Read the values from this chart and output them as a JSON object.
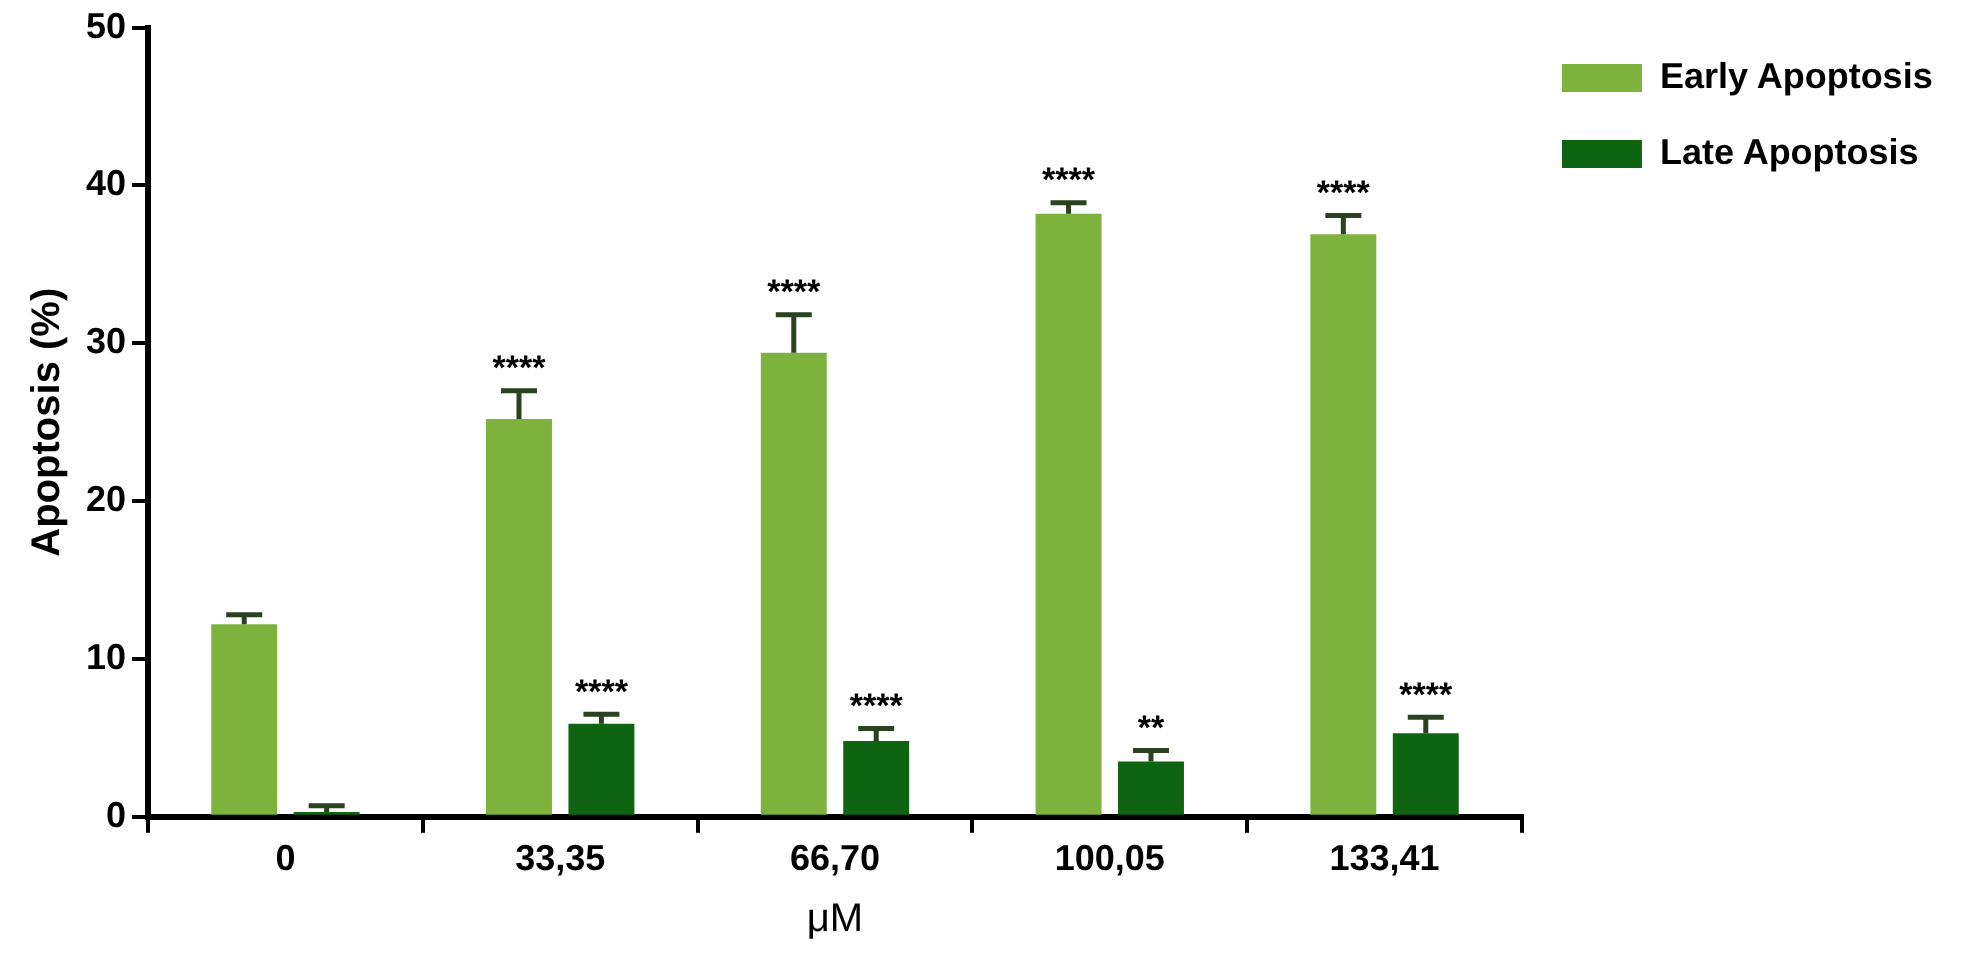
{
  "chart_data": {
    "type": "bar",
    "xlabel": "μM",
    "ylabel": "Apoptosis (%)",
    "categories": [
      "0",
      "33,35",
      "66,70",
      "100,05",
      "133,41"
    ],
    "series": [
      {
        "name": "Early Apoptosis",
        "color": "#7db33d",
        "values": [
          12.2,
          25.2,
          29.4,
          38.2,
          36.9
        ],
        "errors": [
          [
            12.2,
            12.8
          ],
          [
            25.2,
            27.0
          ],
          [
            29.4,
            31.8
          ],
          [
            38.2,
            38.9
          ],
          [
            36.9,
            38.1
          ]
        ]
      },
      {
        "name": "Late Apoptosis",
        "color": "#0f6412",
        "values": [
          0.3,
          5.9,
          4.8,
          3.5,
          5.3
        ],
        "errors": [
          [
            0.3,
            0.7
          ],
          [
            5.9,
            6.5
          ],
          [
            4.8,
            5.6
          ],
          [
            3.5,
            4.2
          ],
          [
            5.3,
            6.3
          ]
        ]
      }
    ],
    "ylim": [
      0,
      50
    ],
    "yticks": [
      0,
      10,
      20,
      30,
      40,
      50
    ],
    "grid": false,
    "legend": "top right",
    "annotations": [
      {
        "text": "****",
        "x": "33,35",
        "y": 25.2
      },
      {
        "text": "****",
        "x": "66,70",
        "y": 29.4
      },
      {
        "text": "****",
        "x": "100,05",
        "y": 38.2
      },
      {
        "text": "****",
        "x": "133,41",
        "y": 36.9
      },
      {
        "text": "****",
        "x": "33,35",
        "y": 5.9
      },
      {
        "text": "****",
        "x": "66,70",
        "y": 4.8
      },
      {
        "text": "**",
        "x": "100,05",
        "y": 3.5
      },
      {
        "text": "****",
        "x": "133,41",
        "y": 5.3
      }
    ]
  }
}
